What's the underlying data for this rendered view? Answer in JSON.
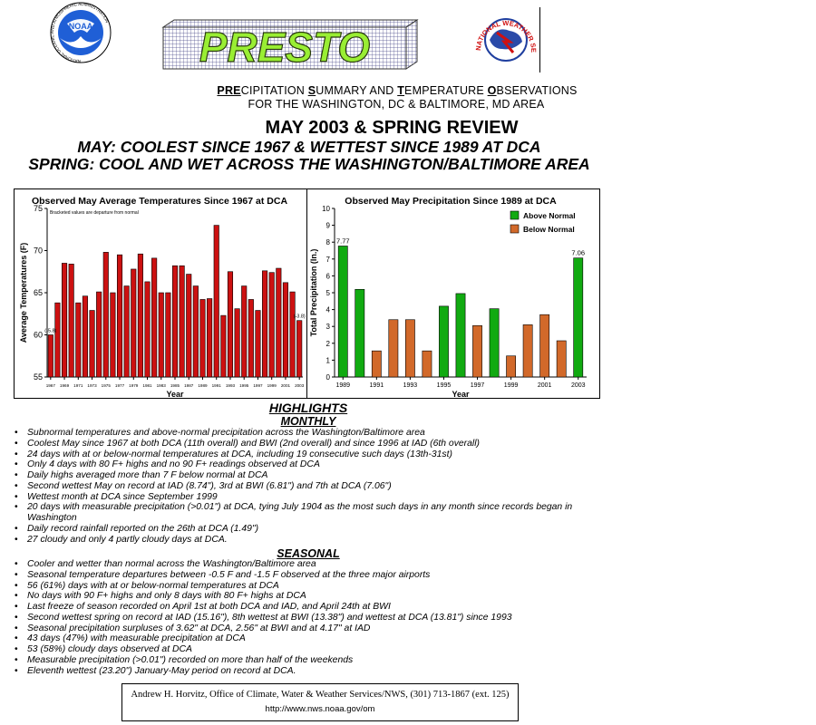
{
  "header": {
    "noaa_logo_text": "NOAA",
    "noaa_logo_ring": "NATIONAL OCEANIC AND ATMOSPHERIC ADMINISTRATION",
    "presto_logo": "PRESTO",
    "nws_logo_ring": "NATIONAL WEATHER SERVICE",
    "subtitle_line1_parts": [
      "PRE",
      "CIPITATION ",
      "S",
      "UMMARY AND ",
      "T",
      "EMPERATURE ",
      "O",
      "BSERVATIONS"
    ],
    "subtitle_line2": "FOR THE WASHINGTON, DC & BALTIMORE, MD AREA",
    "title": "MAY 2003 & SPRING REVIEW",
    "headline1": "MAY: COOLEST SINCE 1967 & WETTEST SINCE 1989 AT DCA",
    "headline2": "SPRING: COOL AND WET ACROSS THE WASHINGTON/BALTIMORE AREA",
    "colors": {
      "presto_green": "#99ee33",
      "bar_red": "#cc1111",
      "bar_green": "#11aa11",
      "bar_orange": "#d2692a"
    }
  },
  "chart_data": [
    {
      "type": "bar",
      "title": "Observed May Average Temperatures Since 1967 at DCA",
      "xlabel": "Year",
      "ylabel": "Average Temperatures (F)",
      "note": "Bracketed values are departure from normal",
      "ylim": [
        55,
        75
      ],
      "yticks": [
        55,
        60,
        65,
        70,
        75
      ],
      "categories": [
        1967,
        1968,
        1969,
        1970,
        1971,
        1972,
        1973,
        1974,
        1975,
        1976,
        1977,
        1978,
        1979,
        1980,
        1981,
        1982,
        1983,
        1984,
        1985,
        1986,
        1987,
        1988,
        1989,
        1990,
        1991,
        1992,
        1993,
        1994,
        1995,
        1996,
        1997,
        1998,
        1999,
        2000,
        2001,
        2002,
        2003
      ],
      "xtick_labels": [
        "1967",
        "1969",
        "1971",
        "1973",
        "1975",
        "1977",
        "1979",
        "1981",
        "1983",
        "1985",
        "1987",
        "1989",
        "1991",
        "1993",
        "1995",
        "1997",
        "1999",
        "2001",
        "2003"
      ],
      "values": [
        60.0,
        63.8,
        68.5,
        68.4,
        63.8,
        64.6,
        62.9,
        65.1,
        69.8,
        65.0,
        69.5,
        65.8,
        67.8,
        69.6,
        66.3,
        69.1,
        65.0,
        65.0,
        68.2,
        68.2,
        67.2,
        65.8,
        64.2,
        64.3,
        73.0,
        62.3,
        67.5,
        63.1,
        65.8,
        64.2,
        62.9,
        67.6,
        67.4,
        67.9,
        66.2,
        65.1,
        61.7
      ],
      "data_labels": [
        {
          "label": "(-5.8)",
          "year": 1967
        },
        {
          "label": "(-3.8)",
          "year": 2003
        }
      ],
      "grid": false
    },
    {
      "type": "bar",
      "title": "Observed May Precipitation Since 1989 at DCA",
      "xlabel": "Year",
      "ylabel": "Total Precipitation (In.)",
      "ylim": [
        0,
        10
      ],
      "yticks": [
        0,
        1,
        2,
        3,
        4,
        5,
        6,
        7,
        8,
        9,
        10
      ],
      "categories": [
        1989,
        1990,
        1991,
        1992,
        1993,
        1994,
        1995,
        1996,
        1997,
        1998,
        1999,
        2000,
        2001,
        2002,
        2003
      ],
      "xtick_labels": [
        "1989",
        "1991",
        "1993",
        "1995",
        "1997",
        "1999",
        "2001",
        "2003"
      ],
      "values": [
        7.77,
        5.2,
        1.55,
        3.4,
        3.4,
        1.55,
        4.2,
        4.95,
        3.05,
        4.05,
        1.25,
        3.1,
        3.7,
        2.15,
        7.06
      ],
      "status": [
        "above",
        "above",
        "below",
        "below",
        "below",
        "below",
        "above",
        "above",
        "below",
        "above",
        "below",
        "below",
        "below",
        "below",
        "above"
      ],
      "legend": [
        {
          "name": "Above Normal",
          "status": "above"
        },
        {
          "name": "Below Normal",
          "status": "below"
        }
      ],
      "legend_position": "top-right",
      "data_labels": [
        {
          "label": "7.77",
          "year": 1989
        },
        {
          "label": "7.06",
          "year": 2003
        }
      ],
      "grid": false
    }
  ],
  "highlights": {
    "heading": "HIGHLIGHTS",
    "monthly_heading": "MONTHLY",
    "monthly": [
      "Subnormal temperatures and above-normal precipitation across the Washington/Baltimore area",
      "Coolest May since 1967 at both DCA (11th overall) and BWI (2nd overall) and since 1996 at IAD (6th overall)",
      "24 days with at or below-normal temperatures at DCA, including 19 consecutive such days (13th-31st)",
      "Only 4 days with 80 F+ highs and no 90 F+ readings observed at DCA",
      "Daily highs averaged more than 7 F below normal at DCA",
      "Second wettest May on record at IAD (8.74\"), 3rd at BWI (6.81\") and 7th at DCA (7.06\")",
      "Wettest month at DCA since September 1999",
      "20 days with measurable precipitation (>0.01\") at DCA, tying July 1904 as the most such days in any month since records began in Washington",
      "Daily record rainfall reported on the 26th at DCA (1.49\")",
      "27 cloudy and only 4 partly cloudy days at DCA."
    ],
    "seasonal_heading": "SEASONAL",
    "seasonal": [
      "Cooler and wetter than normal across the Washington/Baltimore area",
      "Seasonal temperature departures between -0.5 F and -1.5 F observed at the three major airports",
      "56 (61%) days with at or below-normal temperatures at DCA",
      "No days with 90 F+ highs and only 8 days with 80 F+ highs at DCA",
      "Last freeze of season recorded on April 1st at both DCA and IAD, and April 24th at BWI",
      "Second wettest spring on record at IAD (15.16\"), 8th wettest at BWI (13.38\") and wettest at DCA (13.81\") since 1993",
      "Seasonal precipitation surpluses of 3.62\" at DCA, 2.56\" at BWI and at 4.17\" at IAD",
      "43 days (47%) with measurable precipitation at DCA",
      "53 (58%) cloudy days observed at DCA",
      "Measurable precipitation (>0.01\") recorded on more than half of the weekends",
      "Eleventh wettest (23.20\") January-May period on record at DCA."
    ]
  },
  "footer": {
    "line1": "Andrew H. Horvitz, Office of Climate, Water & Weather Services/NWS, (301) 713-1867 (ext. 125)",
    "line2": "http://www.nws.noaa.gov/om"
  }
}
